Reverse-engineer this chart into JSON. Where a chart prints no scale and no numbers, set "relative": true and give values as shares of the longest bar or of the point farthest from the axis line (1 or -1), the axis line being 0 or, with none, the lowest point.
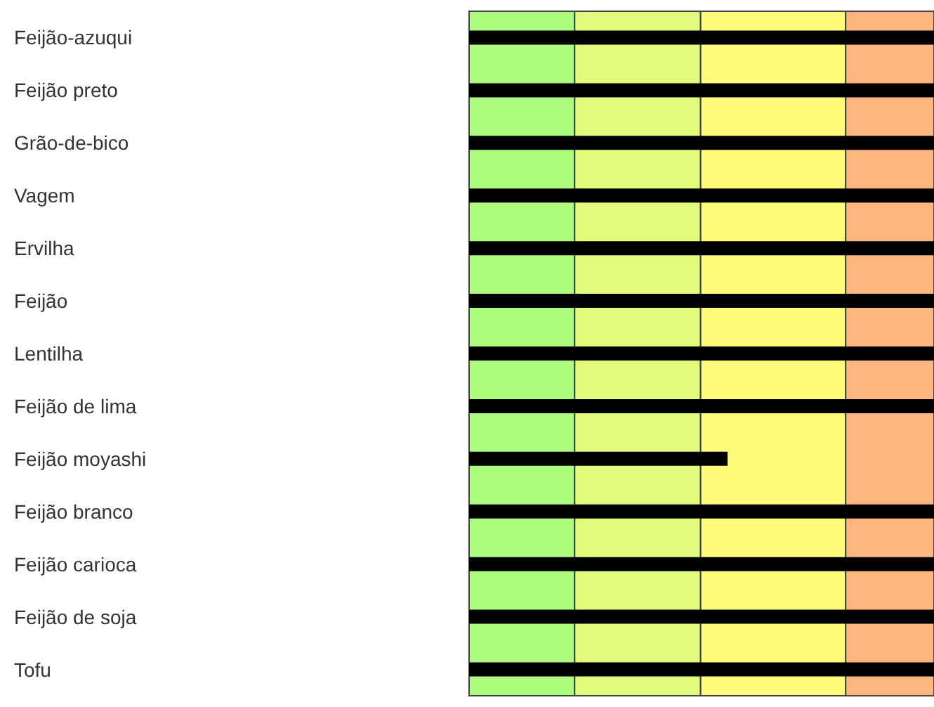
{
  "chart_data": {
    "type": "bar",
    "orientation": "horizontal",
    "relative": true,
    "tick_labels": "y",
    "categories": [
      "Feijão-azuqui",
      "Feijão preto",
      "Grão-de-bico",
      "Vagem",
      "Ervilha",
      "Feijão",
      "Lentilha",
      "Feijão de lima",
      "Feijão moyashi",
      "Feijão branco",
      "Feijão carioca",
      "Feijão de soja",
      "Tofu"
    ],
    "series": [
      {
        "color": "#000000",
        "values": [
          1,
          1,
          1,
          1,
          1,
          1,
          1,
          1,
          0.556,
          1,
          1,
          1,
          1
        ]
      }
    ],
    "bands": [
      {
        "axis": "x",
        "from": 0,
        "to": 0.227,
        "color": "#aefc7e"
      },
      {
        "axis": "x",
        "from": 0.227,
        "to": 0.498,
        "color": "#e0fc7a"
      },
      {
        "axis": "x",
        "from": 0.498,
        "to": 0.81,
        "color": "#fffc7a"
      },
      {
        "axis": "x",
        "from": 0.81,
        "to": 1,
        "color": "#ffb67e"
      }
    ]
  }
}
